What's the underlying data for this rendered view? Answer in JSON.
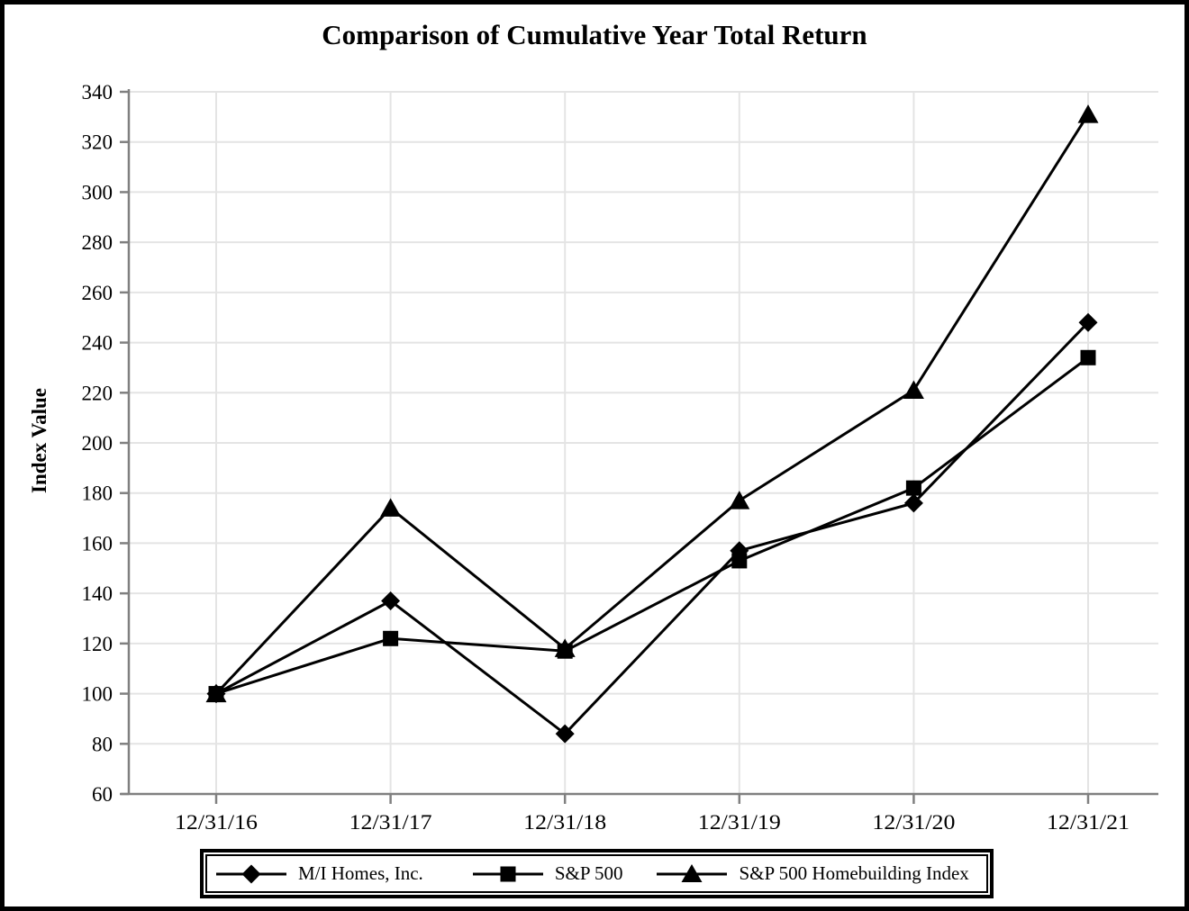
{
  "page": {
    "background_color": "#ffffff",
    "frame_color": "#000000"
  },
  "chart_data": {
    "type": "line",
    "title": "Comparison of Cumulative Year Total Return",
    "xlabel": "",
    "ylabel": "Index Value",
    "categories": [
      "12/31/16",
      "12/31/17",
      "12/31/18",
      "12/31/19",
      "12/31/20",
      "12/31/21"
    ],
    "y_ticks": [
      60,
      80,
      100,
      120,
      140,
      160,
      180,
      200,
      220,
      240,
      260,
      280,
      300,
      320,
      340
    ],
    "ylim": [
      60,
      340
    ],
    "grid": true,
    "legend_position": "bottom",
    "series": [
      {
        "name": "M/I Homes, Inc.",
        "marker": "diamond",
        "color": "#000000",
        "values": [
          100,
          137,
          84,
          157,
          176,
          248
        ]
      },
      {
        "name": "S&P 500",
        "marker": "square",
        "color": "#000000",
        "values": [
          100,
          122,
          117,
          153,
          182,
          234
        ]
      },
      {
        "name": "S&P 500 Homebuilding Index",
        "marker": "triangle",
        "color": "#000000",
        "values": [
          100,
          174,
          118,
          177,
          221,
          331
        ]
      }
    ],
    "colors": {
      "series_line": "#000000",
      "axis": "#808080",
      "grid": "#e4e4e4",
      "text": "#000000"
    }
  }
}
